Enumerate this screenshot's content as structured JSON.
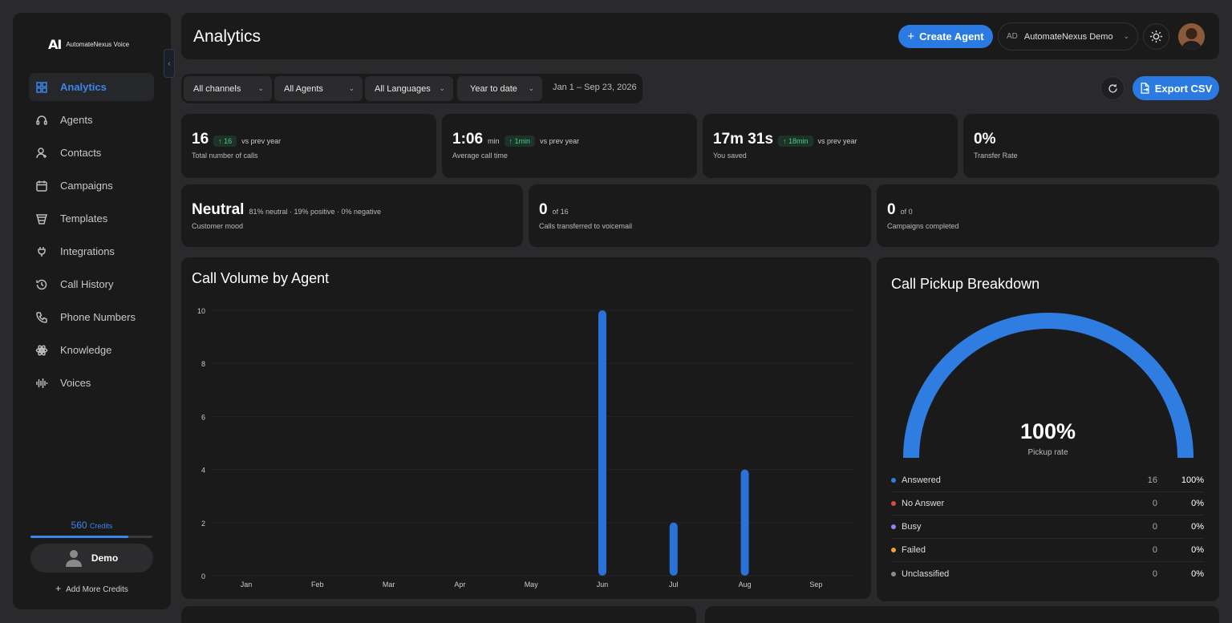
{
  "sidebar": {
    "logo_mark": "AI",
    "brand": "AutomateNexus Voice",
    "items": [
      {
        "label": "Analytics",
        "icon": "grid-icon",
        "active": true
      },
      {
        "label": "Agents",
        "icon": "headset-icon"
      },
      {
        "label": "Contacts",
        "icon": "user-plus-icon"
      },
      {
        "label": "Campaigns",
        "icon": "calendar-icon"
      },
      {
        "label": "Templates",
        "icon": "layers-icon"
      },
      {
        "label": "Integrations",
        "icon": "plug-icon"
      },
      {
        "label": "Call History",
        "icon": "history-icon"
      },
      {
        "label": "Phone Numbers",
        "icon": "phone-icon"
      },
      {
        "label": "Knowledge",
        "icon": "atom-icon"
      },
      {
        "label": "Voices",
        "icon": "waveform-icon"
      }
    ],
    "credits_value": "560",
    "credits_unit": "Credits",
    "credits_level": 0.8,
    "user_name": "Demo",
    "add_credits": "Add More Credits"
  },
  "header": {
    "title": "Analytics",
    "create_button": "Create Agent",
    "org_initials": "AD",
    "org_name": "AutomateNexus Demo"
  },
  "filters": {
    "channels": "All channels",
    "agents": "All Agents",
    "languages": "All Languages",
    "period": "Year to date",
    "date_range": "Jan 1 – Sep 23, 2026",
    "export_button": "Export CSV"
  },
  "kpis": {
    "total_calls": {
      "value": "16",
      "delta": "↑ 16",
      "vs": "vs prev year",
      "label": "Total number of calls"
    },
    "avg_call_time": {
      "value": "1:06",
      "unit": "min",
      "delta": "↑ 1min",
      "vs": "vs prev year",
      "label": "Average call time"
    },
    "saved": {
      "value": "17m 31s",
      "delta": "↑ 18min",
      "vs": "vs prev year",
      "label": "You saved"
    },
    "transfer": {
      "value": "0%",
      "label": "Transfer Rate"
    },
    "mood": {
      "value": "Neutral",
      "sub": "81% neutral · 19% positive · 0% negative",
      "label": "Customer mood"
    },
    "voicemail": {
      "value": "0",
      "sub": "of 16",
      "label": "Calls transferred to voicemail"
    },
    "campaigns": {
      "value": "0",
      "sub": "of 0",
      "label": "Campaigns completed"
    }
  },
  "call_volume": {
    "title": "Call Volume by Agent"
  },
  "pickup": {
    "title": "Call Pickup Breakdown",
    "rate": "100%",
    "rate_label": "Pickup rate",
    "rate_fraction": 1.0,
    "rows": [
      {
        "label": "Answered",
        "count": "16",
        "pct": "100%",
        "color": "#2f7de0"
      },
      {
        "label": "No Answer",
        "count": "0",
        "pct": "0%",
        "color": "#e0483c"
      },
      {
        "label": "Busy",
        "count": "0",
        "pct": "0%",
        "color": "#9a7ff0"
      },
      {
        "label": "Failed",
        "count": "0",
        "pct": "0%",
        "color": "#f0a030"
      },
      {
        "label": "Unclassified",
        "count": "0",
        "pct": "0%",
        "color": "#8a8a8a"
      }
    ]
  },
  "chart_data": {
    "type": "bar",
    "title": "Call Volume by Agent",
    "categories": [
      "Jan",
      "Feb",
      "Mar",
      "Apr",
      "May",
      "Jun",
      "Jul",
      "Aug",
      "Sep"
    ],
    "values": [
      0,
      0,
      0,
      0,
      0,
      10,
      2,
      4,
      0
    ],
    "yticks": [
      0,
      2,
      4,
      6,
      8,
      10
    ],
    "ylim": [
      0,
      10
    ],
    "grid": true,
    "bar_color": "#2a72d8"
  }
}
